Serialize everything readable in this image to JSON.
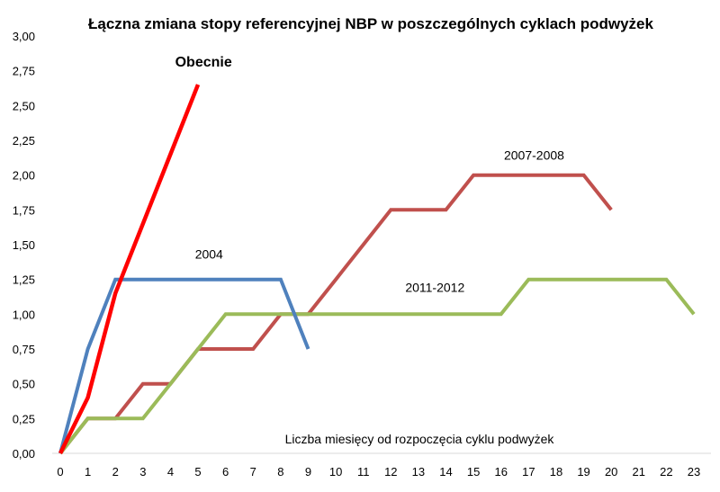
{
  "chart_data": {
    "type": "line",
    "title": "Łączna zmiana stopy referencyjnej NBP w poszczególnych cyklach podwyżek",
    "xlabel": "Liczba miesięcy od rozpoczęcia cyklu podwyżek",
    "ylabel": "",
    "xlim": [
      0,
      23
    ],
    "ylim": [
      0,
      3
    ],
    "x_ticks": [
      "0",
      "1",
      "2",
      "3",
      "4",
      "5",
      "6",
      "7",
      "8",
      "9",
      "10",
      "11",
      "12",
      "13",
      "14",
      "15",
      "16",
      "17",
      "18",
      "19",
      "20",
      "21",
      "22",
      "23"
    ],
    "y_ticks": [
      "0,00",
      "0,25",
      "0,50",
      "0,75",
      "1,00",
      "1,25",
      "1,50",
      "1,75",
      "2,00",
      "2,25",
      "2,50",
      "2,75",
      "3,00"
    ],
    "grid": false,
    "series": [
      {
        "name": "Obecnie",
        "color": "#ff0000",
        "label_style": "bold",
        "points": [
          [
            0,
            0
          ],
          [
            1,
            0.4
          ],
          [
            2,
            1.15
          ],
          [
            3,
            1.65
          ],
          [
            4,
            2.15
          ],
          [
            5,
            2.65
          ]
        ]
      },
      {
        "name": "2004",
        "color": "#4f81bd",
        "points": [
          [
            0,
            0
          ],
          [
            1,
            0.75
          ],
          [
            2,
            1.25
          ],
          [
            3,
            1.25
          ],
          [
            4,
            1.25
          ],
          [
            5,
            1.25
          ],
          [
            6,
            1.25
          ],
          [
            7,
            1.25
          ],
          [
            8,
            1.25
          ],
          [
            9,
            0.75
          ]
        ]
      },
      {
        "name": "2007-2008",
        "color": "#c0504d",
        "points": [
          [
            0,
            0
          ],
          [
            1,
            0.25
          ],
          [
            2,
            0.25
          ],
          [
            3,
            0.5
          ],
          [
            4,
            0.5
          ],
          [
            5,
            0.75
          ],
          [
            6,
            0.75
          ],
          [
            7,
            0.75
          ],
          [
            8,
            1.0
          ],
          [
            9,
            1.0
          ],
          [
            10,
            1.25
          ],
          [
            11,
            1.5
          ],
          [
            12,
            1.75
          ],
          [
            13,
            1.75
          ],
          [
            14,
            1.75
          ],
          [
            15,
            2.0
          ],
          [
            16,
            2.0
          ],
          [
            17,
            2.0
          ],
          [
            18,
            2.0
          ],
          [
            19,
            2.0
          ],
          [
            20,
            1.75
          ]
        ]
      },
      {
        "name": "2011-2012",
        "color": "#9bbb59",
        "points": [
          [
            0,
            0
          ],
          [
            1,
            0.25
          ],
          [
            2,
            0.25
          ],
          [
            3,
            0.25
          ],
          [
            4,
            0.5
          ],
          [
            5,
            0.75
          ],
          [
            6,
            1.0
          ],
          [
            7,
            1.0
          ],
          [
            8,
            1.0
          ],
          [
            9,
            1.0
          ],
          [
            10,
            1.0
          ],
          [
            11,
            1.0
          ],
          [
            12,
            1.0
          ],
          [
            13,
            1.0
          ],
          [
            14,
            1.0
          ],
          [
            15,
            1.0
          ],
          [
            16,
            1.0
          ],
          [
            17,
            1.25
          ],
          [
            18,
            1.25
          ],
          [
            19,
            1.25
          ],
          [
            20,
            1.25
          ],
          [
            21,
            1.25
          ],
          [
            22,
            1.25
          ],
          [
            23,
            1.0
          ]
        ]
      }
    ]
  }
}
